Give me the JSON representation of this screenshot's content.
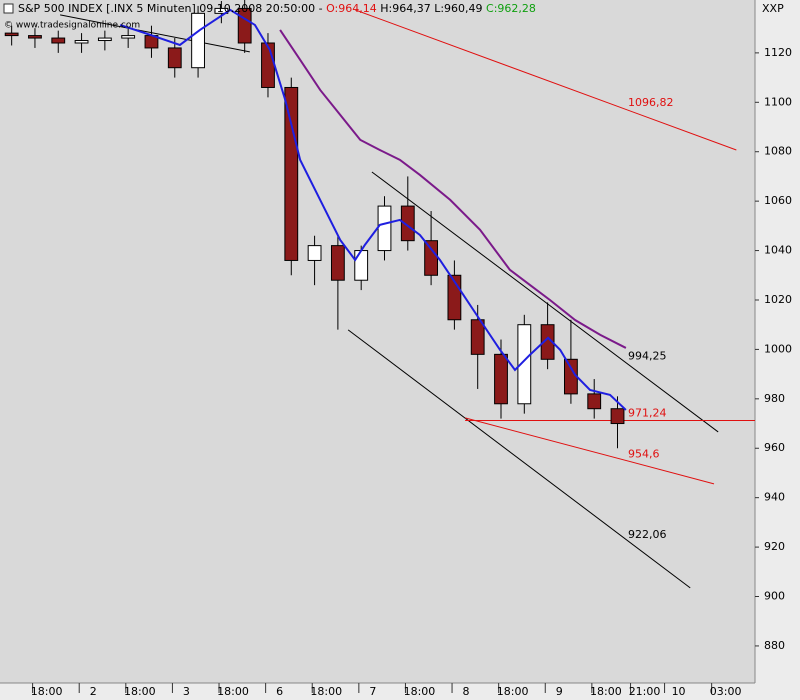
{
  "chart_data": {
    "type": "candlestick",
    "title": "S&P 500 INDEX [.INX  5 Minuten] 09.10.2008 20:50:00 -",
    "header_open": "O:964,14",
    "header_high_low": "H:964,37 L:960,49",
    "header_close": "C:962,28",
    "subtitle": "© www.tradesignalonline.com",
    "symbol_label": "XXP",
    "x": [
      0.25,
      0.75,
      1.25,
      1.75,
      2.25,
      2.75,
      3.25,
      3.75,
      4.25,
      4.75,
      5.25,
      5.75,
      6.25,
      6.75,
      7.25,
      7.75,
      8.25,
      8.75,
      9.25,
      9.75,
      10.25,
      10.75,
      11.25,
      11.75,
      12.25,
      12.75,
      13.25
    ],
    "open": [
      1128,
      1127,
      1126,
      1124,
      1125,
      1126,
      1127,
      1122,
      1114,
      1136,
      1138,
      1124,
      1106,
      1036,
      1042,
      1028,
      1040,
      1058,
      1044,
      1030,
      1012,
      998,
      978,
      1010,
      996,
      982,
      976
    ],
    "high": [
      1131,
      1130,
      1129,
      1128,
      1129,
      1130,
      1131,
      1126,
      1139,
      1141,
      1142,
      1128,
      1110,
      1046,
      1046,
      1042,
      1062,
      1070,
      1056,
      1036,
      1018,
      1004,
      1014,
      1019,
      1012,
      988,
      981
    ],
    "low": [
      1123,
      1122,
      1120,
      1120,
      1121,
      1122,
      1118,
      1110,
      1110,
      1132,
      1120,
      1102,
      1030,
      1026,
      1008,
      1024,
      1036,
      1040,
      1026,
      1008,
      984,
      972,
      974,
      992,
      978,
      972,
      960
    ],
    "close": [
      1127,
      1126,
      1124,
      1125,
      1126,
      1127,
      1122,
      1114,
      1136,
      1138,
      1124,
      1106,
      1036,
      1042,
      1028,
      1040,
      1058,
      1044,
      1030,
      1012,
      998,
      978,
      1010,
      996,
      982,
      976,
      970
    ],
    "up_color": "#ffffff",
    "down_color": "#8b1a1a",
    "series": [
      {
        "color": "#1f1fe0",
        "x": [
          2.58,
          3.22,
          3.86,
          4.29,
          4.94,
          5.47,
          5.79,
          6.12,
          6.44,
          6.87,
          7.3,
          7.62,
          7.83,
          8.15,
          8.58,
          9.01,
          9.44,
          9.87,
          10.3,
          10.73,
          11.05,
          11.37,
          11.76,
          12.02,
          12.34,
          12.66,
          13.09,
          13.43
        ],
        "values": [
          1131.3,
          1127.3,
          1123.2,
          1129.3,
          1137.4,
          1131.3,
          1121.2,
          1101.0,
          1076.7,
          1060.5,
          1044.3,
          1036.2,
          1042.3,
          1050.4,
          1052.4,
          1046.3,
          1036.2,
          1024.1,
          1011.9,
          999.8,
          991.7,
          997.8,
          1004.7,
          999.8,
          989.7,
          983.6,
          981.6,
          975.5
        ]
      },
      {
        "color": "#7b1a8a",
        "x": [
          6.01,
          6.44,
          6.87,
          7.3,
          7.73,
          8.15,
          8.58,
          9.01,
          9.66,
          10.3,
          10.94,
          11.37,
          11.8,
          12.34,
          12.88,
          13.43
        ],
        "values": [
          1129.3,
          1117.2,
          1105.0,
          1094.9,
          1084.8,
          1080.7,
          1076.7,
          1070.6,
          1060.5,
          1048.4,
          1032.2,
          1026.1,
          1020.0,
          1011.9,
          1005.9,
          1000.6
        ]
      }
    ],
    "trend_lines": [
      {
        "color": "#e01010",
        "x": [
          7.62,
          15.8
        ],
        "values": [
          1137.4,
          1080.7
        ]
      },
      {
        "color": "#000000",
        "x": [
          7.98,
          15.41
        ],
        "values": [
          1071.8,
          966.6
        ]
      },
      {
        "color": "#000000",
        "x": [
          7.47,
          14.81
        ],
        "values": [
          1007.9,
          903.5
        ]
      },
      {
        "color": "#e01010",
        "x": [
          9.98,
          16.2
        ],
        "values": [
          971.24,
          971.24
        ]
      },
      {
        "color": "#e01010",
        "x": [
          9.98,
          15.32
        ],
        "values": [
          972.3,
          945.6
        ]
      },
      {
        "color": "#000000",
        "x": [
          1.29,
          5.36
        ],
        "values": [
          1135.4,
          1120.4
        ]
      }
    ],
    "annotations": [
      {
        "value": 1096.82,
        "label": "1096,82",
        "color": "#e01010"
      },
      {
        "value": 994.25,
        "label": "994,25",
        "color": "#000000"
      },
      {
        "value": 971.24,
        "label": "971,24",
        "color": "#e01010"
      },
      {
        "value": 954.6,
        "label": "954,6",
        "color": "#e01010"
      },
      {
        "value": 922.06,
        "label": "922,06",
        "color": "#000000"
      }
    ],
    "xlim": [
      0,
      16.2
    ],
    "ylim": [
      865,
      1141.4
    ],
    "yticks": [
      880,
      900,
      920,
      940,
      960,
      980,
      1000,
      1020,
      1040,
      1060,
      1080,
      1100,
      1120
    ],
    "xticks": [
      {
        "value": 1,
        "label": "18:00"
      },
      2,
      {
        "value": 3,
        "label": "18:00"
      },
      {
        "value": 4,
        "label": "3"
      },
      {
        "value": 5,
        "label": "18:00"
      },
      {
        "value": 6,
        "label": "6"
      },
      {
        "value": 7,
        "label": "18:00"
      },
      {
        "value": 8,
        "label": "7"
      },
      {
        "value": 9,
        "label": "18:00"
      },
      {
        "value": 10,
        "label": "8"
      },
      {
        "value": 11,
        "label": "18:00"
      },
      {
        "value": 12,
        "label": "9"
      },
      {
        "value": 13,
        "label": "18:00"
      },
      {
        "value": 13.83,
        "label": "21:00"
      },
      {
        "value": 14.56,
        "label": "10"
      },
      {
        "value": 15.57,
        "label": "03:00"
      }
    ]
  }
}
